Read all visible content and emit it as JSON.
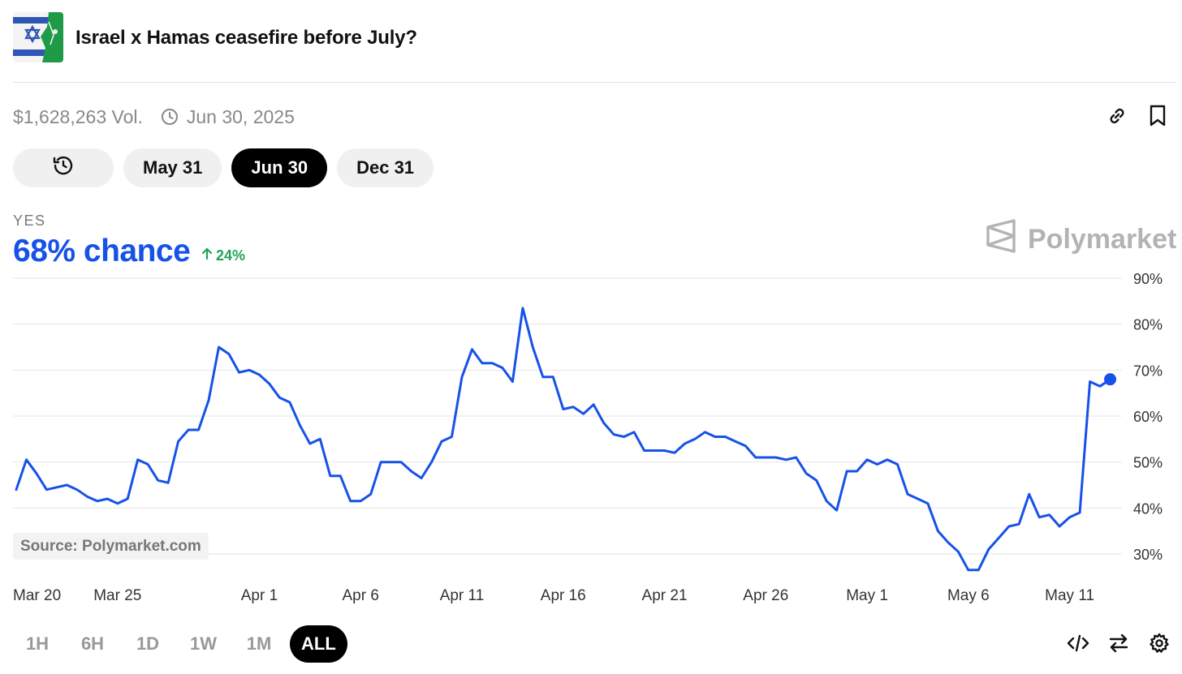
{
  "header": {
    "title": "Israel x Hamas ceasefire before July?",
    "thumbnail_icon": "israel-hamas-flags-thumbnail"
  },
  "meta": {
    "volume": "$1,628,263 Vol.",
    "end_date": "Jun 30, 2025"
  },
  "top_icons": [
    "link-icon",
    "bookmark-icon"
  ],
  "date_pills": {
    "history_icon": "history-icon",
    "items": [
      {
        "label": "May 31",
        "active": false
      },
      {
        "label": "Jun 30",
        "active": true
      },
      {
        "label": "Dec 31",
        "active": false
      }
    ]
  },
  "outcome": {
    "label": "YES",
    "chance": "68% chance",
    "change": "24%",
    "change_direction": "up"
  },
  "brand": {
    "name": "Polymarket"
  },
  "source": "Source: Polymarket.com",
  "time_ranges": [
    {
      "label": "1H",
      "active": false
    },
    {
      "label": "6H",
      "active": false
    },
    {
      "label": "1D",
      "active": false
    },
    {
      "label": "1W",
      "active": false
    },
    {
      "label": "1M",
      "active": false
    },
    {
      "label": "ALL",
      "active": true
    }
  ],
  "bottom_icons": [
    "embed-code-icon",
    "swap-arrows-icon",
    "settings-gear-icon"
  ],
  "colors": {
    "line": "#1652e8",
    "up": "#23a35a",
    "grid": "#e6e6e6"
  },
  "chart_data": {
    "type": "line",
    "x_unit": "days since Mar 20, 2025",
    "x_tick_labels": [
      "Mar 20",
      "Mar 25",
      "Apr 1",
      "Apr 6",
      "Apr 11",
      "Apr 16",
      "Apr 21",
      "Apr 26",
      "May 1",
      "May 6",
      "May 11"
    ],
    "x_tick_values": [
      0,
      5,
      12,
      17,
      22,
      27,
      32,
      37,
      42,
      47,
      52
    ],
    "y_tick_labels": [
      "30%",
      "40%",
      "50%",
      "60%",
      "70%",
      "80%",
      "90%"
    ],
    "y_tick_values": [
      30,
      40,
      50,
      60,
      70,
      80,
      90
    ],
    "ylim": [
      25,
      90
    ],
    "xlim": [
      0,
      54.5
    ],
    "grid": true,
    "series": [
      {
        "name": "YES",
        "x": [
          0,
          0.5,
          1,
          1.5,
          2,
          2.5,
          3,
          3.5,
          4,
          4.5,
          5,
          5.5,
          6,
          6.5,
          7,
          7.5,
          8,
          8.5,
          9,
          9.5,
          10,
          10.5,
          11,
          11.5,
          12,
          12.5,
          13,
          13.5,
          14,
          14.5,
          15,
          15.5,
          16,
          16.5,
          17,
          17.5,
          18,
          18.5,
          19,
          19.5,
          20,
          20.5,
          21,
          21.5,
          22,
          22.5,
          23,
          23.5,
          24,
          24.5,
          25,
          25.5,
          26,
          26.5,
          27,
          27.5,
          28,
          28.5,
          29,
          29.5,
          30,
          30.5,
          31,
          31.5,
          32,
          32.5,
          33,
          33.5,
          34,
          34.5,
          35,
          35.5,
          36,
          36.5,
          37,
          37.5,
          38,
          38.5,
          39,
          39.5,
          40,
          40.5,
          41,
          41.5,
          42,
          42.5,
          43,
          43.5,
          44,
          44.5,
          45,
          45.5,
          46,
          46.5,
          47,
          47.5,
          48,
          48.5,
          49,
          49.5,
          50,
          50.5,
          51,
          51.5,
          52,
          52.5,
          53,
          53.5,
          54
        ],
        "values": [
          44,
          50.5,
          47.5,
          44,
          44.5,
          45,
          44,
          42.5,
          41.5,
          42,
          41,
          42,
          50.5,
          49.5,
          46,
          45.5,
          54.5,
          57,
          57,
          63.5,
          75,
          73.5,
          69.5,
          70,
          69,
          67,
          64,
          63,
          58,
          54,
          55,
          47,
          47,
          41.5,
          41.5,
          43,
          50,
          50,
          50,
          48,
          46.5,
          50,
          54.5,
          55.5,
          68.5,
          74.5,
          71.5,
          71.5,
          70.5,
          67.5,
          83.5,
          75,
          68.5,
          68.5,
          61.5,
          62,
          60.5,
          62.5,
          58.5,
          56,
          55.5,
          56.5,
          52.5,
          52.5,
          52.5,
          52,
          54,
          55,
          56.5,
          55.5,
          55.5,
          54.5,
          53.5,
          51,
          51,
          51,
          50.5,
          51,
          47.5,
          46,
          41.5,
          39.5,
          48,
          48,
          50.5,
          49.5,
          50.5,
          49.5,
          43,
          42,
          41,
          35,
          32.5,
          30.5,
          26.5,
          26.5,
          31,
          33.5,
          36,
          36.5,
          43,
          38,
          38.5,
          36,
          38,
          39,
          67.5,
          66.5,
          68
        ]
      }
    ]
  }
}
